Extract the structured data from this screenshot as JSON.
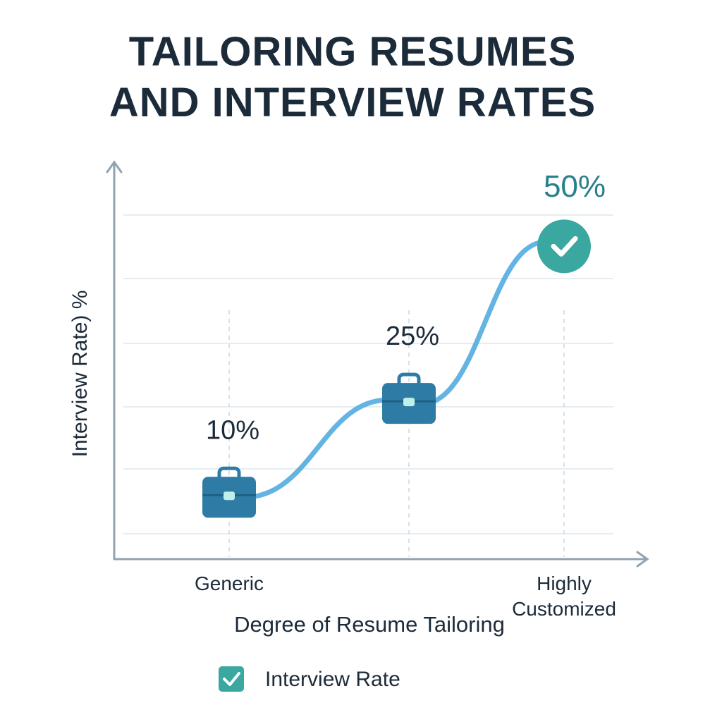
{
  "chart_data": {
    "type": "line",
    "title": "TAILORING RESUMES AND INTERVIEW RATES",
    "x_label": "Degree of Resume Tailoring",
    "y_label": "Interview Rate) %",
    "categories": [
      "Generic",
      null,
      "Highly Customized"
    ],
    "series": [
      {
        "name": "Interview Rate",
        "color": "#63b3e3",
        "values": [
          10,
          25,
          50
        ],
        "value_labels": [
          "10%",
          "25%",
          "50%"
        ]
      }
    ],
    "ylim": [
      0,
      55
    ]
  }
}
